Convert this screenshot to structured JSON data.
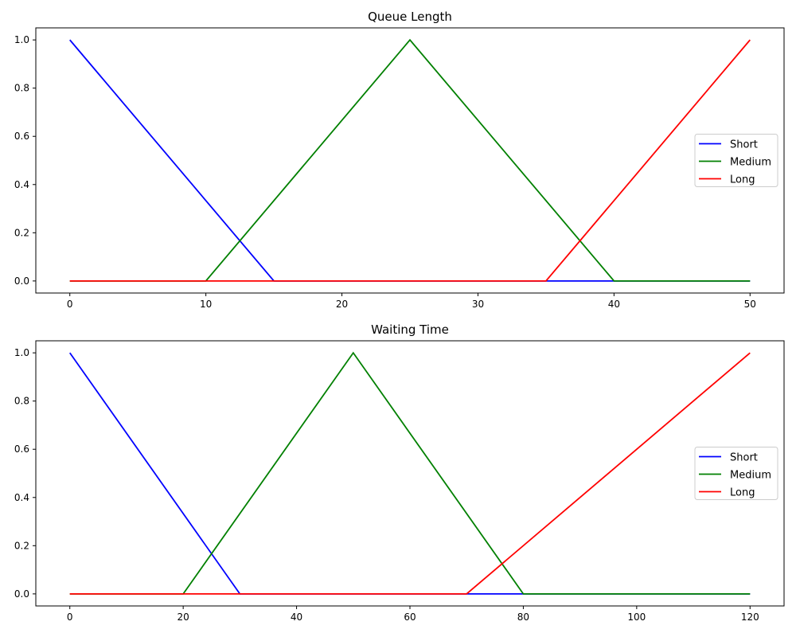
{
  "chart_data": [
    {
      "type": "line",
      "title": "Queue Length",
      "xlim": [
        -2.5,
        52.5
      ],
      "ylim": [
        -0.05,
        1.05
      ],
      "xticks": [
        0,
        10,
        20,
        30,
        40,
        50
      ],
      "xtick_labels": [
        "0",
        "10",
        "20",
        "30",
        "40",
        "50"
      ],
      "yticks": [
        0.0,
        0.2,
        0.4,
        0.6,
        0.8,
        1.0
      ],
      "ytick_labels": [
        "0.0",
        "0.2",
        "0.4",
        "0.6",
        "0.8",
        "1.0"
      ],
      "legend_position": "center-right",
      "series": [
        {
          "name": "Short",
          "color": "#0000ff",
          "x": [
            0,
            15,
            50
          ],
          "y": [
            1,
            0,
            0
          ]
        },
        {
          "name": "Medium",
          "color": "#008000",
          "x": [
            0,
            10,
            25,
            40,
            50
          ],
          "y": [
            0,
            0,
            1,
            0,
            0
          ]
        },
        {
          "name": "Long",
          "color": "#ff0000",
          "x": [
            0,
            35,
            50
          ],
          "y": [
            0,
            0,
            1
          ]
        }
      ]
    },
    {
      "type": "line",
      "title": "Waiting Time",
      "xlim": [
        -6,
        126
      ],
      "ylim": [
        -0.05,
        1.05
      ],
      "xticks": [
        0,
        20,
        40,
        60,
        80,
        100,
        120
      ],
      "xtick_labels": [
        "0",
        "20",
        "40",
        "60",
        "80",
        "100",
        "120"
      ],
      "yticks": [
        0.0,
        0.2,
        0.4,
        0.6,
        0.8,
        1.0
      ],
      "ytick_labels": [
        "0.0",
        "0.2",
        "0.4",
        "0.6",
        "0.8",
        "1.0"
      ],
      "legend_position": "center-right",
      "series": [
        {
          "name": "Short",
          "color": "#0000ff",
          "x": [
            0,
            30,
            120
          ],
          "y": [
            1,
            0,
            0
          ]
        },
        {
          "name": "Medium",
          "color": "#008000",
          "x": [
            0,
            20,
            50,
            80,
            120
          ],
          "y": [
            0,
            0,
            1,
            0,
            0
          ]
        },
        {
          "name": "Long",
          "color": "#ff0000",
          "x": [
            0,
            70,
            120
          ],
          "y": [
            0,
            0,
            1
          ]
        }
      ]
    }
  ]
}
